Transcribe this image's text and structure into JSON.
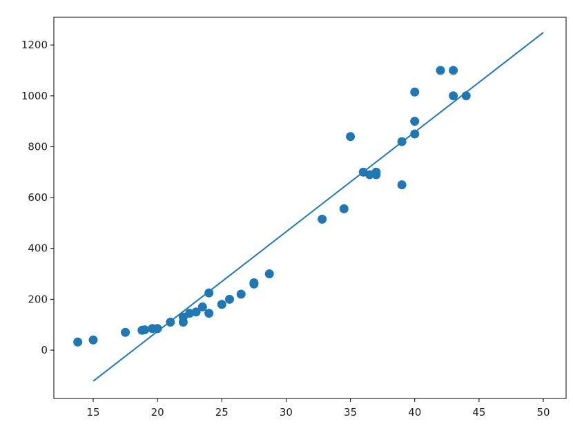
{
  "chart_data": {
    "type": "scatter",
    "x": [
      13.8,
      15,
      17.5,
      18.8,
      19,
      19.6,
      20,
      21,
      22,
      22,
      22.5,
      23,
      23.5,
      24,
      24,
      25,
      25.6,
      26.5,
      27.5,
      27.5,
      28.7,
      32.8,
      34.5,
      35,
      36,
      36.5,
      37,
      37,
      39,
      39,
      40,
      40,
      40,
      42,
      43,
      43,
      44
    ],
    "series": [
      {
        "color": "#1f77b4",
        "values": [
          32,
          40,
          70,
          78,
          80,
          85,
          85,
          110,
          110,
          130,
          145,
          150,
          170,
          145,
          225,
          180,
          200,
          220,
          260,
          265,
          300,
          515,
          556,
          840,
          700,
          690,
          700,
          690,
          820,
          650,
          850,
          900,
          1015,
          1100,
          1100,
          1000,
          1000
        ]
      },
      {
        "color": "#1f77b4",
        "style": "line",
        "x": [
          15,
          50
        ],
        "values": [
          -122,
          1249
        ]
      }
    ],
    "xlim": [
      11.94,
      51.77
    ],
    "ylim": [
      -190,
      1309
    ],
    "xticks": [
      15,
      20,
      25,
      30,
      35,
      40,
      45,
      50
    ],
    "yticks": [
      0,
      200,
      400,
      600,
      800,
      1000,
      1200
    ]
  }
}
